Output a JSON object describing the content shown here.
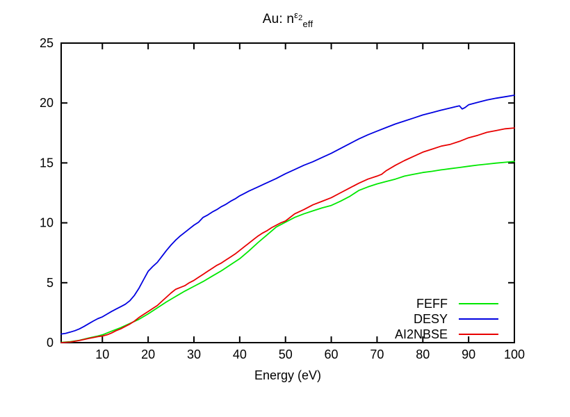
{
  "title": {
    "prefix": "Au: n",
    "sup_base": "ε",
    "sup_sub": "2",
    "sub": "eff"
  },
  "chart_data": {
    "type": "line",
    "title_plain": "Au: n^(eps2)_eff",
    "xlabel": "Energy (eV)",
    "ylabel": "",
    "xlim": [
      1,
      100
    ],
    "ylim": [
      0,
      25
    ],
    "x_ticks": [
      10,
      20,
      30,
      40,
      50,
      60,
      70,
      80,
      90,
      100
    ],
    "y_ticks": [
      0,
      5,
      10,
      15,
      20,
      25
    ],
    "grid": false,
    "legend_position": "inside-bottom-right",
    "background_color": "#ffffff",
    "axis_color": "#000000",
    "series": [
      {
        "name": "FEFF",
        "color": "#00e800",
        "points": [
          [
            1,
            0.02
          ],
          [
            3,
            0.08
          ],
          [
            5,
            0.2
          ],
          [
            7,
            0.38
          ],
          [
            9,
            0.55
          ],
          [
            10,
            0.65
          ],
          [
            12,
            0.95
          ],
          [
            14,
            1.25
          ],
          [
            16,
            1.6
          ],
          [
            18,
            1.95
          ],
          [
            20,
            2.4
          ],
          [
            22,
            2.9
          ],
          [
            24,
            3.4
          ],
          [
            26,
            3.85
          ],
          [
            28,
            4.3
          ],
          [
            30,
            4.7
          ],
          [
            32,
            5.1
          ],
          [
            34,
            5.55
          ],
          [
            36,
            6.0
          ],
          [
            38,
            6.5
          ],
          [
            40,
            7.0
          ],
          [
            42,
            7.65
          ],
          [
            44,
            8.35
          ],
          [
            46,
            9.0
          ],
          [
            48,
            9.65
          ],
          [
            50,
            10.05
          ],
          [
            52,
            10.45
          ],
          [
            54,
            10.75
          ],
          [
            56,
            11.0
          ],
          [
            58,
            11.25
          ],
          [
            60,
            11.45
          ],
          [
            62,
            11.8
          ],
          [
            64,
            12.2
          ],
          [
            66,
            12.7
          ],
          [
            68,
            13.0
          ],
          [
            70,
            13.25
          ],
          [
            72,
            13.45
          ],
          [
            74,
            13.65
          ],
          [
            76,
            13.9
          ],
          [
            78,
            14.05
          ],
          [
            80,
            14.2
          ],
          [
            82,
            14.3
          ],
          [
            84,
            14.42
          ],
          [
            86,
            14.52
          ],
          [
            88,
            14.62
          ],
          [
            90,
            14.72
          ],
          [
            92,
            14.82
          ],
          [
            94,
            14.9
          ],
          [
            96,
            14.98
          ],
          [
            98,
            15.05
          ],
          [
            100,
            15.12
          ]
        ]
      },
      {
        "name": "DESY",
        "color": "#0000e0",
        "points": [
          [
            1,
            0.72
          ],
          [
            2,
            0.78
          ],
          [
            3,
            0.88
          ],
          [
            4,
            1.0
          ],
          [
            5,
            1.15
          ],
          [
            6,
            1.35
          ],
          [
            7,
            1.58
          ],
          [
            8,
            1.8
          ],
          [
            9,
            2.0
          ],
          [
            10,
            2.15
          ],
          [
            11,
            2.38
          ],
          [
            12,
            2.6
          ],
          [
            13,
            2.8
          ],
          [
            14,
            3.0
          ],
          [
            15,
            3.2
          ],
          [
            16,
            3.5
          ],
          [
            17,
            3.95
          ],
          [
            18,
            4.55
          ],
          [
            19,
            5.25
          ],
          [
            20,
            5.95
          ],
          [
            21,
            6.35
          ],
          [
            22,
            6.7
          ],
          [
            23,
            7.2
          ],
          [
            24,
            7.7
          ],
          [
            25,
            8.15
          ],
          [
            26,
            8.55
          ],
          [
            27,
            8.9
          ],
          [
            28,
            9.2
          ],
          [
            29,
            9.5
          ],
          [
            30,
            9.8
          ],
          [
            31,
            10.05
          ],
          [
            32,
            10.45
          ],
          [
            33,
            10.65
          ],
          [
            34,
            10.9
          ],
          [
            35,
            11.1
          ],
          [
            36,
            11.35
          ],
          [
            37,
            11.55
          ],
          [
            38,
            11.8
          ],
          [
            39,
            12.0
          ],
          [
            40,
            12.25
          ],
          [
            41,
            12.45
          ],
          [
            42,
            12.65
          ],
          [
            44,
            13.0
          ],
          [
            46,
            13.35
          ],
          [
            48,
            13.7
          ],
          [
            50,
            14.1
          ],
          [
            52,
            14.45
          ],
          [
            54,
            14.8
          ],
          [
            56,
            15.1
          ],
          [
            58,
            15.45
          ],
          [
            60,
            15.8
          ],
          [
            62,
            16.2
          ],
          [
            64,
            16.6
          ],
          [
            66,
            17.0
          ],
          [
            68,
            17.35
          ],
          [
            70,
            17.65
          ],
          [
            72,
            17.95
          ],
          [
            74,
            18.25
          ],
          [
            76,
            18.5
          ],
          [
            78,
            18.75
          ],
          [
            80,
            19.0
          ],
          [
            82,
            19.2
          ],
          [
            84,
            19.4
          ],
          [
            86,
            19.58
          ],
          [
            87,
            19.68
          ],
          [
            88,
            19.76
          ],
          [
            88.6,
            19.5
          ],
          [
            89.2,
            19.62
          ],
          [
            90,
            19.85
          ],
          [
            92,
            20.05
          ],
          [
            94,
            20.25
          ],
          [
            96,
            20.4
          ],
          [
            98,
            20.52
          ],
          [
            100,
            20.65
          ]
        ]
      },
      {
        "name": "AI2NBSE",
        "color": "#e80000",
        "points": [
          [
            1,
            0.0
          ],
          [
            3,
            0.05
          ],
          [
            5,
            0.18
          ],
          [
            7,
            0.35
          ],
          [
            9,
            0.5
          ],
          [
            10,
            0.55
          ],
          [
            11,
            0.65
          ],
          [
            12,
            0.8
          ],
          [
            13,
            1.0
          ],
          [
            14,
            1.15
          ],
          [
            15,
            1.35
          ],
          [
            16,
            1.55
          ],
          [
            17,
            1.8
          ],
          [
            18,
            2.1
          ],
          [
            19,
            2.35
          ],
          [
            20,
            2.6
          ],
          [
            21,
            2.85
          ],
          [
            22,
            3.1
          ],
          [
            23,
            3.45
          ],
          [
            24,
            3.8
          ],
          [
            25,
            4.15
          ],
          [
            26,
            4.45
          ],
          [
            27,
            4.6
          ],
          [
            28,
            4.75
          ],
          [
            29,
            5.0
          ],
          [
            30,
            5.2
          ],
          [
            31,
            5.45
          ],
          [
            32,
            5.7
          ],
          [
            33,
            5.95
          ],
          [
            34,
            6.2
          ],
          [
            35,
            6.45
          ],
          [
            36,
            6.65
          ],
          [
            37,
            6.9
          ],
          [
            38,
            7.15
          ],
          [
            39,
            7.4
          ],
          [
            40,
            7.7
          ],
          [
            41,
            8.0
          ],
          [
            42,
            8.3
          ],
          [
            43,
            8.6
          ],
          [
            44,
            8.9
          ],
          [
            45,
            9.15
          ],
          [
            46,
            9.35
          ],
          [
            47,
            9.6
          ],
          [
            48,
            9.8
          ],
          [
            49,
            10.0
          ],
          [
            50,
            10.15
          ],
          [
            52,
            10.75
          ],
          [
            54,
            11.1
          ],
          [
            56,
            11.5
          ],
          [
            58,
            11.8
          ],
          [
            60,
            12.1
          ],
          [
            62,
            12.5
          ],
          [
            64,
            12.9
          ],
          [
            66,
            13.3
          ],
          [
            68,
            13.65
          ],
          [
            70,
            13.9
          ],
          [
            71,
            14.05
          ],
          [
            72,
            14.35
          ],
          [
            74,
            14.8
          ],
          [
            76,
            15.2
          ],
          [
            78,
            15.55
          ],
          [
            80,
            15.9
          ],
          [
            82,
            16.15
          ],
          [
            84,
            16.4
          ],
          [
            86,
            16.55
          ],
          [
            88,
            16.8
          ],
          [
            90,
            17.1
          ],
          [
            92,
            17.3
          ],
          [
            94,
            17.55
          ],
          [
            96,
            17.7
          ],
          [
            98,
            17.85
          ],
          [
            100,
            17.92
          ]
        ]
      }
    ]
  }
}
